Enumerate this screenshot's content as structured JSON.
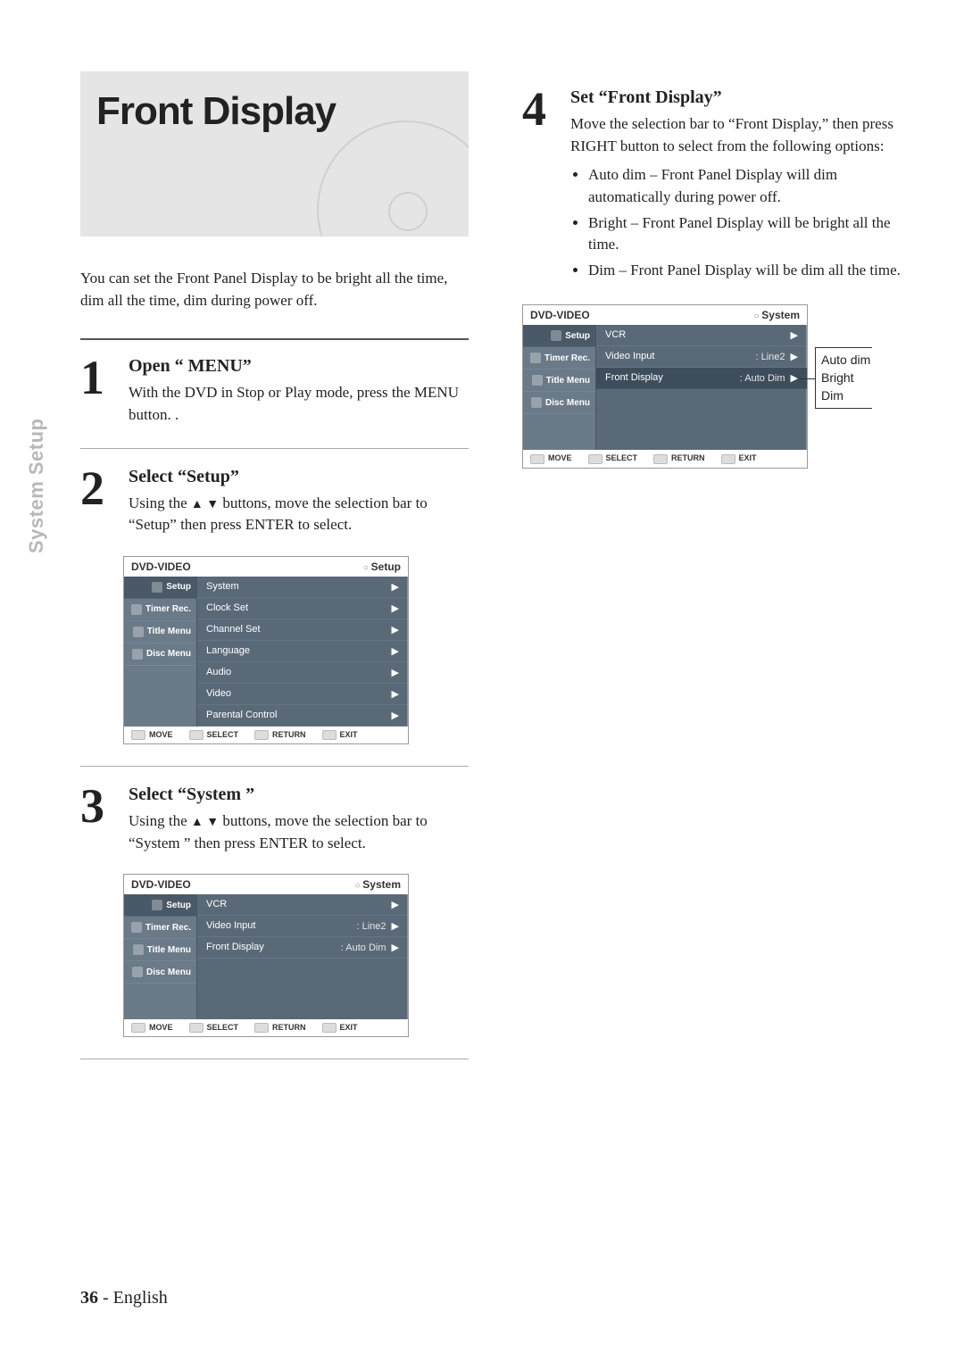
{
  "sideTab": "System Setup",
  "titleCard": "Front Display",
  "intro": "You can set the Front Panel Display to be bright all the time, dim all the time, dim during power off.",
  "steps": {
    "s1": {
      "num": "1",
      "title": "Open “ MENU”",
      "text": "With the DVD in Stop or Play mode, press the MENU button. ."
    },
    "s2": {
      "num": "2",
      "title": "Select “Setup”",
      "preText": "Using the",
      "postText": " buttons, move the selection bar to “Setup” then press ENTER to select."
    },
    "s3": {
      "num": "3",
      "title": "Select “System ”",
      "preText": "Using the",
      "postText": " buttons, move the selection bar to “System ” then press ENTER to select."
    },
    "s4": {
      "num": "4",
      "title": "Set “Front Display”",
      "text": "Move the selection bar to “Front Display,” then press RIGHT button to select from the following options:",
      "bullets": [
        "Auto dim – Front Panel Display will dim automatically during power off.",
        "Bright – Front Panel Display will be bright all the time.",
        "Dim – Front Panel Display will be dim all the time."
      ]
    }
  },
  "osd": {
    "topLeft": "DVD-VIDEO",
    "sidebar": [
      "Setup",
      "Timer Rec.",
      "Title Menu",
      "Disc Menu"
    ],
    "footer": [
      "MOVE",
      "SELECT",
      "RETURN",
      "EXIT"
    ],
    "setup": {
      "topRight": "Setup",
      "rows": [
        "System",
        "Clock Set",
        "Channel Set",
        "Language",
        "Audio",
        "Video",
        "Parental Control"
      ]
    },
    "system": {
      "topRight": "System",
      "rows": [
        {
          "l": "VCR",
          "r": ""
        },
        {
          "l": "Video Input",
          "r": ": Line2"
        },
        {
          "l": "Front Display",
          "r": ": Auto Dim"
        }
      ]
    }
  },
  "callout": {
    "l1": "Auto dim",
    "l2": "Bright",
    "l3": "Dim"
  },
  "footer": {
    "page": "36",
    "sep": " - ",
    "lang": "English"
  },
  "glyphs": {
    "upDown": "▲ ▼",
    "right": "▶"
  }
}
